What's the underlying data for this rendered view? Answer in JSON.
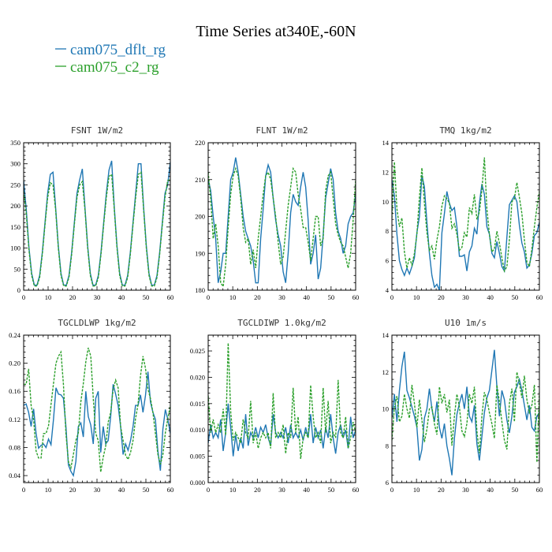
{
  "title": "Time Series at340E,-60N",
  "legend": [
    {
      "name": "cam075_dflt_rg",
      "color": "#1f77b4"
    },
    {
      "name": "cam075_c2_rg",
      "color": "#2ca02c"
    }
  ],
  "chart_data": [
    {
      "type": "line",
      "title": "FSNT   1W/m2",
      "xlim": [
        0,
        60
      ],
      "xticks": [
        0,
        10,
        20,
        30,
        40,
        50,
        60
      ],
      "ylim": [
        0,
        350
      ],
      "yticks": [
        0,
        50,
        100,
        150,
        200,
        250,
        300,
        350
      ],
      "ytick_labels": [
        "0",
        "50",
        "100",
        "150",
        "200",
        "250",
        "300",
        "350"
      ],
      "grid": false,
      "series": [
        {
          "color": "#1f77b4",
          "dash": false,
          "values": [
            260,
            190,
            100,
            40,
            12,
            12,
            35,
            90,
            160,
            230,
            275,
            280,
            195,
            105,
            40,
            12,
            12,
            35,
            90,
            160,
            230,
            262,
            288,
            195,
            105,
            40,
            12,
            12,
            35,
            90,
            160,
            230,
            285,
            307,
            195,
            105,
            40,
            12,
            12,
            35,
            90,
            160,
            230,
            300,
            300,
            195,
            105,
            40,
            12,
            12,
            35,
            90,
            160,
            230,
            250,
            305
          ]
        },
        {
          "color": "#2ca02c",
          "dash": true,
          "values": [
            235,
            180,
            95,
            35,
            10,
            10,
            30,
            85,
            155,
            220,
            255,
            250,
            190,
            100,
            35,
            10,
            10,
            30,
            85,
            155,
            220,
            250,
            258,
            190,
            100,
            35,
            10,
            10,
            30,
            85,
            155,
            220,
            270,
            275,
            190,
            100,
            35,
            10,
            10,
            30,
            85,
            155,
            220,
            275,
            280,
            190,
            100,
            35,
            10,
            10,
            30,
            85,
            155,
            220,
            260,
            262
          ]
        }
      ]
    },
    {
      "type": "line",
      "title": "FLNT   1W/m2",
      "xlim": [
        0,
        60
      ],
      "xticks": [
        0,
        10,
        20,
        30,
        40,
        50,
        60
      ],
      "ylim": [
        180,
        220
      ],
      "yticks": [
        180,
        190,
        200,
        210,
        220
      ],
      "ytick_labels": [
        "180",
        "190",
        "200",
        "210",
        "220"
      ],
      "grid": false,
      "series": [
        {
          "color": "#1f77b4",
          "dash": false,
          "values": [
            210,
            207,
            200,
            194,
            182,
            185,
            190,
            190,
            200,
            210,
            212,
            216,
            212,
            206,
            200,
            196,
            194,
            192,
            188,
            182,
            182,
            194,
            202,
            211,
            214,
            212,
            205,
            199,
            195,
            192,
            185,
            182,
            190,
            201,
            206,
            204,
            203,
            208,
            212,
            208,
            199,
            187,
            190,
            195,
            183,
            186,
            195,
            205,
            209,
            213,
            210,
            201,
            196,
            194,
            190,
            192,
            198,
            200,
            201,
            206
          ]
        },
        {
          "color": "#2ca02c",
          "dash": true,
          "values": [
            212,
            205,
            194,
            198,
            192,
            182,
            181,
            187,
            197,
            206,
            211,
            213,
            211,
            205,
            197,
            193,
            194,
            187,
            191,
            186,
            194,
            200,
            206,
            211,
            212,
            210,
            205,
            200,
            193,
            187,
            189,
            196,
            203,
            208,
            213,
            212,
            206,
            202,
            197,
            197,
            193,
            188,
            194,
            200,
            200,
            192,
            194,
            207,
            211,
            212,
            205,
            198,
            195,
            193,
            192,
            189,
            186,
            190,
            199,
            210
          ]
        }
      ]
    },
    {
      "type": "line",
      "title": "TMQ   1kg/m2",
      "xlim": [
        0,
        60
      ],
      "xticks": [
        0,
        10,
        20,
        30,
        40,
        50,
        60
      ],
      "ylim": [
        4,
        14
      ],
      "yticks": [
        4,
        6,
        8,
        10,
        12,
        14
      ],
      "ytick_labels": [
        "4",
        "6",
        "8",
        "10",
        "12",
        "14"
      ],
      "grid": false,
      "series": [
        {
          "color": "#1f77b4",
          "dash": false,
          "values": [
            11.5,
            10.4,
            7.8,
            6.0,
            5.4,
            5.0,
            5.5,
            5.1,
            5.6,
            6.2,
            7.9,
            9.0,
            11.8,
            11.0,
            8.6,
            6.5,
            5.0,
            4.2,
            4.4,
            4.0,
            7.9,
            9.2,
            10.7,
            9.9,
            9.4,
            9.6,
            8.3,
            6.3,
            6.3,
            6.4,
            5.3,
            6.6,
            7.0,
            8.2,
            7.8,
            9.9,
            11.2,
            10.5,
            8.3,
            7.8,
            6.5,
            6.2,
            7.3,
            6.5,
            5.6,
            5.3,
            7.6,
            9.8,
            10.1,
            10.4,
            10.0,
            8.4,
            7.2,
            6.6,
            5.5,
            5.7,
            6.5,
            7.7,
            7.9,
            8.6
          ]
        },
        {
          "color": "#2ca02c",
          "dash": true,
          "values": [
            8.9,
            12.7,
            9.5,
            8.3,
            8.9,
            6.6,
            5.5,
            6.2,
            5.7,
            6.5,
            7.8,
            10.3,
            12.3,
            9.9,
            7.9,
            6.7,
            7.0,
            6.1,
            7.4,
            8.3,
            9.7,
            10.4,
            10.2,
            9.9,
            8.2,
            8.5,
            7.8,
            6.7,
            6.9,
            7.9,
            7.6,
            9.6,
            9.2,
            10.5,
            8.8,
            9.3,
            10.8,
            13.0,
            9.5,
            7.8,
            6.6,
            6.8,
            8.0,
            7.2,
            6.2,
            5.3,
            5.6,
            7.4,
            10.0,
            10.2,
            11.3,
            10.3,
            9.2,
            7.4,
            5.9,
            5.6,
            6.8,
            8.3,
            9.6,
            10.7
          ]
        }
      ]
    },
    {
      "type": "line",
      "title": "TGCLDLWP   1kg/m2",
      "xlim": [
        0,
        60
      ],
      "xticks": [
        0,
        10,
        20,
        30,
        40,
        50,
        60
      ],
      "ylim": [
        0.03,
        0.24
      ],
      "yticks": [
        0.04,
        0.08,
        0.12,
        0.16,
        0.2,
        0.24
      ],
      "ytick_labels": [
        "0.04",
        "0.08",
        "0.12",
        "0.16",
        "0.20",
        "0.24"
      ],
      "grid": false,
      "series": [
        {
          "color": "#1f77b4",
          "dash": false,
          "values": [
            0.14,
            0.142,
            0.13,
            0.11,
            0.135,
            0.1,
            0.079,
            0.083,
            0.085,
            0.08,
            0.092,
            0.084,
            0.12,
            0.165,
            0.156,
            0.155,
            0.15,
            0.11,
            0.055,
            0.046,
            0.04,
            0.06,
            0.11,
            0.115,
            0.095,
            0.16,
            0.124,
            0.112,
            0.085,
            0.15,
            0.16,
            0.073,
            0.11,
            0.085,
            0.09,
            0.124,
            0.17,
            0.156,
            0.14,
            0.11,
            0.07,
            0.085,
            0.076,
            0.09,
            0.11,
            0.14,
            0.14,
            0.155,
            0.13,
            0.154,
            0.188,
            0.145,
            0.13,
            0.12,
            0.075,
            0.047,
            0.106,
            0.134,
            0.12,
            0.1
          ]
        },
        {
          "color": "#2ca02c",
          "dash": true,
          "values": [
            0.17,
            0.17,
            0.192,
            0.14,
            0.12,
            0.075,
            0.065,
            0.065,
            0.1,
            0.1,
            0.111,
            0.141,
            0.171,
            0.2,
            0.21,
            0.216,
            0.17,
            0.1,
            0.06,
            0.051,
            0.07,
            0.09,
            0.101,
            0.145,
            0.171,
            0.202,
            0.222,
            0.21,
            0.15,
            0.1,
            0.09,
            0.045,
            0.066,
            0.082,
            0.116,
            0.13,
            0.163,
            0.176,
            0.165,
            0.11,
            0.09,
            0.069,
            0.063,
            0.073,
            0.09,
            0.121,
            0.141,
            0.182,
            0.21,
            0.193,
            0.163,
            0.15,
            0.13,
            0.1,
            0.07,
            0.056,
            0.07,
            0.101,
            0.121,
            0.14
          ]
        }
      ]
    },
    {
      "type": "line",
      "title": "TGCLDIWP   1.0kg/m2",
      "xlim": [
        0,
        60
      ],
      "xticks": [
        0,
        10,
        20,
        30,
        40,
        50,
        60
      ],
      "ylim": [
        0,
        0.028
      ],
      "yticks": [
        0,
        0.005,
        0.01,
        0.015,
        0.02,
        0.025
      ],
      "ytick_labels": [
        "0.000",
        "0.005",
        "0.010",
        "0.015",
        "0.020",
        "0.025"
      ],
      "grid": false,
      "series": [
        {
          "color": "#1f77b4",
          "dash": false,
          "values": [
            0.0075,
            0.011,
            0.0085,
            0.0095,
            0.0085,
            0.012,
            0.006,
            0.0095,
            0.015,
            0.0105,
            0.005,
            0.009,
            0.006,
            0.0085,
            0.0065,
            0.013,
            0.007,
            0.0095,
            0.0085,
            0.0105,
            0.0085,
            0.0105,
            0.0095,
            0.011,
            0.0085,
            0.007,
            0.013,
            0.0095,
            0.0085,
            0.0095,
            0.0085,
            0.0105,
            0.0075,
            0.011,
            0.0085,
            0.0095,
            0.0085,
            0.01,
            0.008,
            0.0105,
            0.0085,
            0.013,
            0.0075,
            0.0105,
            0.0085,
            0.01,
            0.0065,
            0.0105,
            0.0085,
            0.013,
            0.0085,
            0.0055,
            0.0095,
            0.011,
            0.0085,
            0.01,
            0.0065,
            0.0125,
            0.0085,
            0.01
          ]
        },
        {
          "color": "#2ca02c",
          "dash": true,
          "values": [
            0.0165,
            0.0095,
            0.012,
            0.0095,
            0.011,
            0.0095,
            0.014,
            0.009,
            0.0265,
            0.0135,
            0.008,
            0.0095,
            0.0085,
            0.0075,
            0.012,
            0.0095,
            0.0085,
            0.0155,
            0.0075,
            0.0095,
            0.0065,
            0.0085,
            0.0095,
            0.0085,
            0.0095,
            0.0065,
            0.017,
            0.0085,
            0.0095,
            0.0085,
            0.011,
            0.0055,
            0.0095,
            0.0085,
            0.018,
            0.0095,
            0.0125,
            0.0045,
            0.0085,
            0.0095,
            0.0085,
            0.0185,
            0.0125,
            0.0085,
            0.0095,
            0.0075,
            0.018,
            0.0095,
            0.0155,
            0.0075,
            0.0095,
            0.0085,
            0.0195,
            0.0095,
            0.0085,
            0.0125,
            0.0065,
            0.0085,
            0.0115,
            0.0095
          ]
        }
      ]
    },
    {
      "type": "line",
      "title": "U10   1m/s",
      "xlim": [
        0,
        60
      ],
      "xticks": [
        0,
        10,
        20,
        30,
        40,
        50,
        60
      ],
      "ylim": [
        6,
        14
      ],
      "yticks": [
        6,
        8,
        10,
        12,
        14
      ],
      "ytick_labels": [
        "6",
        "8",
        "10",
        "12",
        "14"
      ],
      "grid": false,
      "series": [
        {
          "color": "#1f77b4",
          "dash": false,
          "values": [
            9.5,
            10.8,
            9.3,
            11.0,
            12.3,
            13.1,
            11.0,
            10.6,
            10.1,
            9.6,
            9.0,
            7.2,
            7.8,
            9.5,
            10.0,
            11.1,
            10.0,
            9.3,
            10.4,
            9.0,
            8.4,
            9.2,
            8.0,
            7.3,
            6.4,
            8.4,
            9.7,
            10.3,
            10.8,
            10.0,
            11.2,
            9.6,
            9.3,
            10.2,
            8.1,
            7.2,
            8.5,
            9.8,
            10.6,
            11.0,
            12.1,
            13.2,
            11.2,
            9.6,
            11.0,
            10.5,
            9.4,
            8.7,
            9.6,
            10.9,
            11.2,
            11.6,
            11.0,
            10.2,
            9.4,
            10.2,
            9.0,
            8.8,
            9.6,
            9.8
          ]
        },
        {
          "color": "#2ca02c",
          "dash": true,
          "values": [
            8.3,
            10.1,
            10.7,
            9.3,
            9.6,
            10.8,
            10.0,
            9.5,
            11.3,
            10.3,
            9.0,
            10.5,
            9.4,
            8.2,
            8.9,
            10.0,
            10.1,
            9.2,
            8.6,
            11.2,
            10.3,
            10.8,
            9.8,
            10.5,
            8.0,
            9.6,
            10.8,
            10.1,
            8.8,
            8.5,
            9.2,
            10.8,
            10.3,
            11.2,
            8.8,
            7.6,
            9.6,
            10.9,
            10.5,
            9.8,
            9.2,
            8.4,
            11.3,
            10.4,
            9.3,
            8.3,
            7.8,
            10.3,
            11.1,
            9.3,
            12.0,
            11.4,
            10.6,
            11.8,
            10.5,
            9.8,
            10.2,
            11.3,
            7.1,
            10.9
          ]
        }
      ]
    }
  ]
}
